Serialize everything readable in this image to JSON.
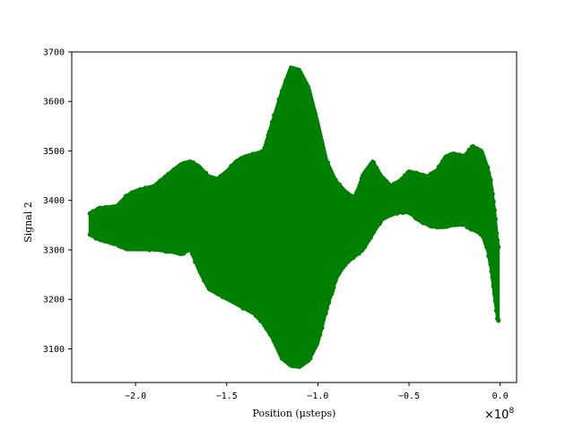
{
  "chart_data": {
    "type": "scatter",
    "title": "",
    "xlabel": "Position (μsteps)",
    "ylabel": "Signal 2",
    "x_multiplier_label": "×10",
    "x_multiplier_exponent": "8",
    "xlim": [
      -2.35,
      0.09
    ],
    "ylim": [
      3032,
      3700
    ],
    "x_ticks": [
      -2.0,
      -1.5,
      -1.0,
      -0.5,
      0.0
    ],
    "x_tick_labels": [
      "−2.0",
      "−1.5",
      "−1.0",
      "−0.5",
      "0.0"
    ],
    "y_ticks": [
      3100,
      3200,
      3300,
      3400,
      3500,
      3600,
      3700
    ],
    "y_tick_labels": [
      "3100",
      "3200",
      "3300",
      "3400",
      "3500",
      "3600",
      "3700"
    ],
    "grid": false,
    "series": [
      {
        "color": "#008000",
        "envelope": {
          "x": [
            -2.25,
            -2.2,
            -2.1,
            -2.05,
            -2.0,
            -1.9,
            -1.8,
            -1.75,
            -1.7,
            -1.65,
            -1.6,
            -1.55,
            -1.5,
            -1.45,
            -1.4,
            -1.35,
            -1.3,
            -1.25,
            -1.2,
            -1.15,
            -1.1,
            -1.05,
            -1.0,
            -0.95,
            -0.9,
            -0.85,
            -0.8,
            -0.75,
            -0.7,
            -0.65,
            -0.6,
            -0.55,
            -0.5,
            -0.45,
            -0.4,
            -0.35,
            -0.3,
            -0.25,
            -0.2,
            -0.15,
            -0.1,
            -0.07,
            -0.05,
            -0.03,
            -0.015,
            -0.01
          ],
          "upper": [
            3375,
            3385,
            3390,
            3410,
            3420,
            3430,
            3460,
            3475,
            3480,
            3470,
            3450,
            3445,
            3460,
            3480,
            3490,
            3495,
            3500,
            3560,
            3620,
            3670,
            3665,
            3630,
            3560,
            3480,
            3440,
            3420,
            3405,
            3455,
            3480,
            3450,
            3430,
            3440,
            3460,
            3455,
            3450,
            3460,
            3490,
            3495,
            3490,
            3510,
            3500,
            3470,
            3440,
            3380,
            3320,
            3310
          ],
          "lower": [
            3330,
            3320,
            3310,
            3300,
            3300,
            3300,
            3295,
            3290,
            3300,
            3255,
            3220,
            3210,
            3200,
            3190,
            3180,
            3170,
            3150,
            3120,
            3080,
            3065,
            3062,
            3075,
            3110,
            3180,
            3240,
            3270,
            3285,
            3300,
            3330,
            3360,
            3370,
            3375,
            3375,
            3360,
            3350,
            3345,
            3345,
            3350,
            3350,
            3340,
            3330,
            3300,
            3260,
            3200,
            3160,
            3155
          ]
        }
      }
    ]
  }
}
